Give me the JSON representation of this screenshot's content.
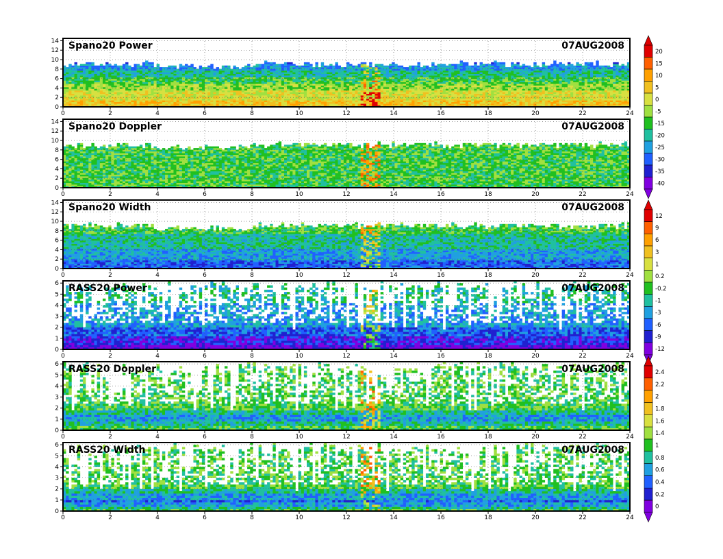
{
  "chart_data": [
    {
      "type": "heatmap",
      "title": "Spano20 Power",
      "date": "07AUG2008",
      "x_ticks": [
        "0",
        "2",
        "4",
        "6",
        "8",
        "10",
        "12",
        "14",
        "16",
        "18",
        "20",
        "22",
        "24"
      ],
      "xlim": [
        0,
        24
      ],
      "y_ticks": [
        "0",
        "2",
        "4",
        "6",
        "8",
        "10",
        "12",
        "14"
      ],
      "ylim": [
        0,
        14.5
      ],
      "data_top": 9.5,
      "colorbar": {
        "labels": [
          "20",
          "15",
          "10",
          "5",
          "0",
          "-5",
          "-15",
          "-20",
          "-25",
          "-30",
          "-35",
          "-40"
        ],
        "colors": [
          "#e00000",
          "#ff6000",
          "#ffa000",
          "#f0c020",
          "#d8e040",
          "#a0e040",
          "#20c020",
          "#20c0a0",
          "#20a0e0",
          "#2060ff",
          "#2020d0",
          "#8000e0"
        ]
      },
      "profile": [
        {
          "h": 0,
          "v": 5
        },
        {
          "h": 1.5,
          "v": 2
        },
        {
          "h": 3,
          "v": 0
        },
        {
          "h": 4,
          "v": -5
        },
        {
          "h": 5.5,
          "v": -15
        },
        {
          "h": 7,
          "v": -20
        },
        {
          "h": 8,
          "v": -25
        },
        {
          "h": 9.5,
          "v": -30
        }
      ]
    },
    {
      "type": "heatmap",
      "title": "Spano20 Doppler",
      "date": "07AUG2008",
      "x_ticks": [
        "0",
        "2",
        "4",
        "6",
        "8",
        "10",
        "12",
        "14",
        "16",
        "18",
        "20",
        "22",
        "24"
      ],
      "xlim": [
        0,
        24
      ],
      "y_ticks": [
        "0",
        "2",
        "4",
        "6",
        "8",
        "10",
        "12",
        "14"
      ],
      "ylim": [
        0,
        14.5
      ],
      "data_top": 9.5,
      "colorbar": null,
      "profile": [
        {
          "h": 0,
          "v": -15
        },
        {
          "h": 9.5,
          "v": -15
        }
      ]
    },
    {
      "type": "heatmap",
      "title": "Spano20 Width",
      "date": "07AUG2008",
      "x_ticks": [
        "0",
        "2",
        "4",
        "6",
        "8",
        "10",
        "12",
        "14",
        "16",
        "18",
        "20",
        "22",
        "24"
      ],
      "xlim": [
        0,
        24
      ],
      "y_ticks": [
        "0",
        "2",
        "4",
        "6",
        "8",
        "10",
        "12",
        "14"
      ],
      "ylim": [
        0,
        14.5
      ],
      "data_top": 9.5,
      "colorbar": {
        "labels": [
          "12",
          "9",
          "6",
          "3",
          "1",
          "0.2",
          "-0.2",
          "-1",
          "-3",
          "-6",
          "-9",
          "-12"
        ],
        "colors": [
          "#e00000",
          "#ff6000",
          "#ffa000",
          "#f0c020",
          "#d8e040",
          "#a0e040",
          "#20c020",
          "#20c0a0",
          "#20a0e0",
          "#2060ff",
          "#2020d0",
          "#8000e0"
        ]
      },
      "profile": [
        {
          "h": 0,
          "v": -6
        },
        {
          "h": 3,
          "v": -3
        },
        {
          "h": 5,
          "v": -1
        },
        {
          "h": 9.5,
          "v": -0.2
        }
      ]
    },
    {
      "type": "heatmap",
      "title": "RASS20 Power",
      "date": "07AUG2008",
      "x_ticks": [
        "0",
        "2",
        "4",
        "6",
        "8",
        "10",
        "12",
        "14",
        "16",
        "18",
        "20",
        "22",
        "24"
      ],
      "xlim": [
        0,
        24
      ],
      "y_ticks": [
        "0",
        "1",
        "2",
        "3",
        "4",
        "5",
        "6"
      ],
      "ylim": [
        0,
        6.2
      ],
      "data_top": 6.1,
      "colorbar": null,
      "profile": [
        {
          "h": 0,
          "v": -12
        },
        {
          "h": 0.8,
          "v": -9
        },
        {
          "h": 1.5,
          "v": -6
        },
        {
          "h": 2.2,
          "v": -3
        },
        {
          "h": 6.1,
          "v": -1
        }
      ]
    },
    {
      "type": "heatmap",
      "title": "RASS20 Doppler",
      "date": "07AUG2008",
      "x_ticks": [
        "0",
        "2",
        "4",
        "6",
        "8",
        "10",
        "12",
        "14",
        "16",
        "18",
        "20",
        "22",
        "24"
      ],
      "xlim": [
        0,
        24
      ],
      "y_ticks": [
        "0",
        "1",
        "2",
        "3",
        "4",
        "5",
        "6"
      ],
      "ylim": [
        0,
        6.2
      ],
      "data_top": 6.1,
      "colorbar": {
        "labels": [
          "2.4",
          "2.2",
          "2",
          "1.8",
          "1.6",
          "1.4",
          "1",
          "0.8",
          "0.6",
          "0.4",
          "0.2",
          "0"
        ],
        "colors": [
          "#e00000",
          "#ff6000",
          "#ffa000",
          "#f0c020",
          "#d8e040",
          "#a0e040",
          "#20c020",
          "#20c0a0",
          "#20a0e0",
          "#2060ff",
          "#2020d0",
          "#8000e0"
        ]
      },
      "profile": [
        {
          "h": 0,
          "v": 1
        },
        {
          "h": 1,
          "v": 0.6
        },
        {
          "h": 2,
          "v": 1
        },
        {
          "h": 6.1,
          "v": 1
        }
      ]
    },
    {
      "type": "heatmap",
      "title": "RASS20 Width",
      "date": "07AUG2008",
      "x_ticks": [
        "0",
        "2",
        "4",
        "6",
        "8",
        "10",
        "12",
        "14",
        "16",
        "18",
        "20",
        "22",
        "24"
      ],
      "xlim": [
        0,
        24
      ],
      "y_ticks": [
        "0",
        "1",
        "2",
        "3",
        "4",
        "5",
        "6"
      ],
      "ylim": [
        0,
        6.2
      ],
      "data_top": 6.1,
      "colorbar": null,
      "profile": [
        {
          "h": 0,
          "v": 1
        },
        {
          "h": 0.8,
          "v": 0.4
        },
        {
          "h": 2,
          "v": 1
        },
        {
          "h": 6.1,
          "v": 1
        }
      ]
    }
  ]
}
